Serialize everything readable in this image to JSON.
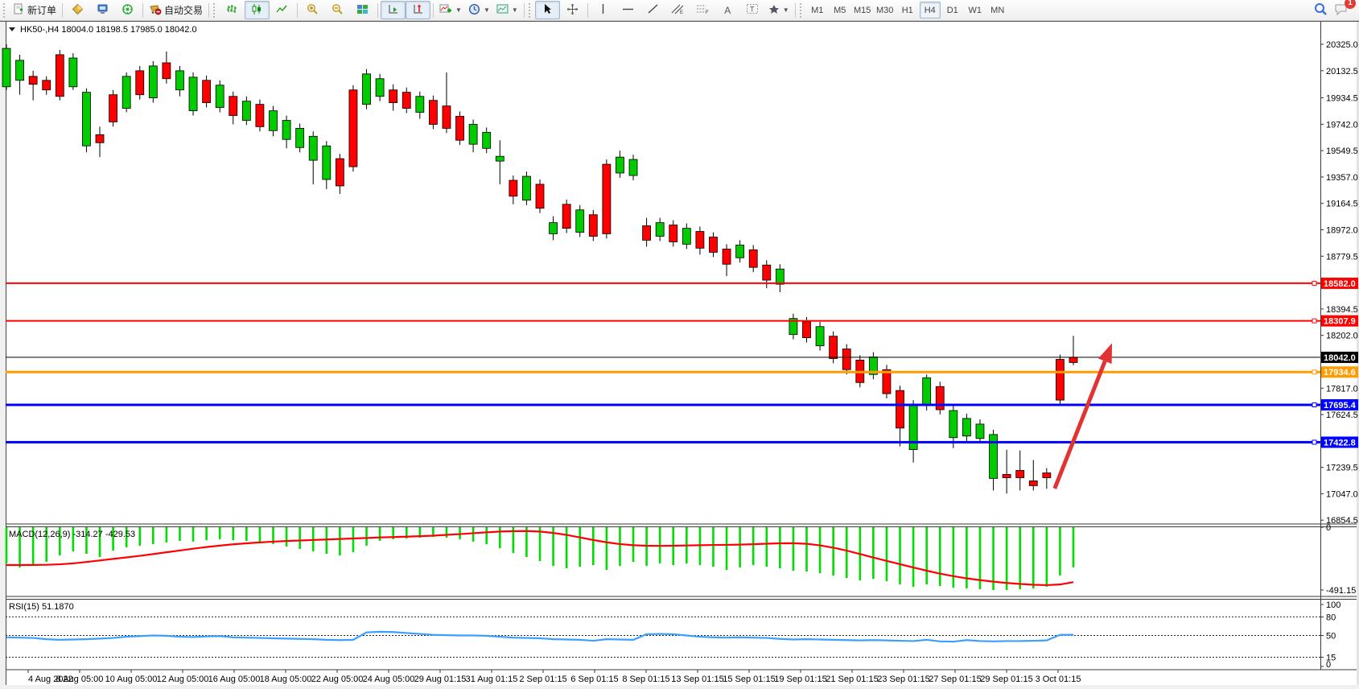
{
  "toolbar": {
    "new_order_label": "新订单",
    "autotrade_label": "自动交易",
    "timeframes": [
      "M1",
      "M5",
      "M15",
      "M30",
      "H1",
      "H4",
      "D1",
      "W1",
      "MN"
    ],
    "active_timeframe": "H4",
    "notification_count": "1",
    "icons": [
      "new-order-icon",
      "market-watch-icon",
      "data-window-icon",
      "navigator-icon",
      "autotrading-icon",
      "bar-chart-icon",
      "candlestick-chart-icon",
      "line-chart-icon",
      "zoom-in-icon",
      "zoom-out-icon",
      "tile-windows-icon",
      "auto-scroll-icon",
      "chart-shift-icon",
      "indicators-icon",
      "periods-icon",
      "templates-icon",
      "cursor-icon",
      "crosshair-icon",
      "vertical-line-icon",
      "horizontal-line-icon",
      "trendline-icon",
      "channel-icon",
      "fibonacci-icon",
      "text-icon",
      "text-label-icon",
      "arrows-icon",
      "search-icon",
      "notifications-icon"
    ]
  },
  "header": {
    "symbol_period": "HK50-,H4",
    "ohlc_text": "18004.0 18198.5 17985.0 18042.0",
    "open": "18004.0",
    "high": "18198.5",
    "low": "17985.0",
    "close": "18042.0"
  },
  "macd": {
    "label": "MACD(12,26,9) -314.27 -429.53",
    "axis_labels": [
      "0",
      "-491.15"
    ]
  },
  "rsi": {
    "label": "RSI(15) 51.1870",
    "axis_labels": [
      "100",
      "80",
      "50",
      "15",
      "0"
    ]
  },
  "colors": {
    "up": "#00cc00",
    "down": "#ff0000",
    "wick": "#000000",
    "macd_hist": "#00dd00",
    "macd_signal": "#ff0000",
    "rsi_line": "#3aa0ff",
    "level_red": "#ff0000",
    "level_orange": "#ff9c00",
    "level_blue": "#0000ff",
    "price_line": "#000000",
    "arrow": "#e23333"
  },
  "chart_data": [
    {
      "type": "candlestick",
      "title": "HK50-,H4",
      "symbol": "HK50-",
      "timeframe": "H4",
      "ylim": [
        16820,
        20400
      ],
      "y_ticks": [
        "20325.0",
        "20132.5",
        "19934.5",
        "19742.0",
        "19549.5",
        "19357.0",
        "19164.5",
        "18972.0",
        "18779.5",
        "18394.5",
        "18202.0",
        "17817.0",
        "17624.5",
        "17239.5",
        "17047.0",
        "16854.5"
      ],
      "x_labels": [
        "4 Aug 2022",
        "8 Aug 05:00",
        "10 Aug 05:00",
        "12 Aug 05:00",
        "16 Aug 05:00",
        "18 Aug 05:00",
        "22 Aug 05:00",
        "24 Aug 05:00",
        "29 Aug 01:15",
        "31 Aug 01:15",
        "2 Sep 01:15",
        "6 Sep 01:15",
        "8 Sep 01:15",
        "13 Sep 01:15",
        "15 Sep 01:15",
        "19 Sep 01:15",
        "21 Sep 01:15",
        "23 Sep 01:15",
        "27 Sep 01:15",
        "29 Sep 01:15",
        "3 Oct 01:15"
      ],
      "levels": [
        {
          "price": 18582.0,
          "label": "18582.0",
          "color": "#ff0000",
          "width": 2
        },
        {
          "price": 18307.9,
          "label": "18307.9",
          "color": "#ff0000",
          "width": 2
        },
        {
          "price": 18042.0,
          "label": "18042.0",
          "color": "#000000",
          "width": 1,
          "style": "current-price"
        },
        {
          "price": 17934.6,
          "label": "17934.6",
          "color": "#ff9c00",
          "width": 3
        },
        {
          "price": 17695.4,
          "label": "17695.4",
          "color": "#0000ff",
          "width": 3
        },
        {
          "price": 17422.8,
          "label": "17422.8",
          "color": "#0000ff",
          "width": 3
        }
      ],
      "arrow": {
        "from": {
          "bar": 78.6,
          "price": 17085
        },
        "to": {
          "bar": 82.9,
          "price": 18145
        }
      },
      "candles": [
        [
          20015,
          20324,
          19992,
          20295,
          "g"
        ],
        [
          20062,
          20249,
          19957,
          20208,
          "g"
        ],
        [
          20091,
          20132,
          19916,
          20033,
          "r"
        ],
        [
          20062,
          20091,
          19957,
          19992,
          "r"
        ],
        [
          20249,
          20284,
          19916,
          19945,
          "r"
        ],
        [
          20015,
          20260,
          19992,
          20225,
          "g"
        ],
        [
          19584,
          20004,
          19537,
          19975,
          "g"
        ],
        [
          19666,
          19724,
          19502,
          19607,
          "r"
        ],
        [
          19957,
          19992,
          19724,
          19759,
          "r"
        ],
        [
          19858,
          20120,
          19829,
          20091,
          "g"
        ],
        [
          20132,
          20167,
          19922,
          19957,
          "r"
        ],
        [
          19934,
          20202,
          19899,
          20167,
          "g"
        ],
        [
          20190,
          20272,
          20039,
          20074,
          "r"
        ],
        [
          19992,
          20167,
          19945,
          20132,
          "g"
        ],
        [
          19840,
          20120,
          19805,
          20085,
          "g"
        ],
        [
          20062,
          20097,
          19864,
          19899,
          "r"
        ],
        [
          19864,
          20062,
          19829,
          20027,
          "g"
        ],
        [
          19945,
          19980,
          19741,
          19805,
          "r"
        ],
        [
          19770,
          19945,
          19736,
          19910,
          "g"
        ],
        [
          19887,
          19922,
          19689,
          19724,
          "r"
        ],
        [
          19695,
          19875,
          19654,
          19840,
          "g"
        ],
        [
          19631,
          19805,
          19566,
          19770,
          "g"
        ],
        [
          19572,
          19747,
          19537,
          19712,
          "g"
        ],
        [
          19479,
          19689,
          19304,
          19654,
          "g"
        ],
        [
          19339,
          19619,
          19269,
          19584,
          "g"
        ],
        [
          19491,
          19526,
          19234,
          19292,
          "r"
        ],
        [
          19992,
          20027,
          19397,
          19432,
          "r"
        ],
        [
          19887,
          20144,
          19852,
          20109,
          "g"
        ],
        [
          19945,
          20109,
          19910,
          20074,
          "g"
        ],
        [
          19992,
          20033,
          19840,
          19899,
          "r"
        ],
        [
          19975,
          20010,
          19823,
          19858,
          "r"
        ],
        [
          19829,
          19980,
          19782,
          19945,
          "g"
        ],
        [
          19916,
          19951,
          19706,
          19741,
          "r"
        ],
        [
          19875,
          20120,
          19677,
          19712,
          "r"
        ],
        [
          19800,
          19835,
          19590,
          19625,
          "r"
        ],
        [
          19596,
          19776,
          19537,
          19741,
          "g"
        ],
        [
          19566,
          19718,
          19531,
          19683,
          "g"
        ],
        [
          19473,
          19625,
          19304,
          19508,
          "g"
        ],
        [
          19333,
          19368,
          19158,
          19217,
          "r"
        ],
        [
          19188,
          19397,
          19152,
          19362,
          "g"
        ],
        [
          19304,
          19339,
          19094,
          19129,
          "r"
        ],
        [
          18943,
          19071,
          18896,
          19024,
          "g"
        ],
        [
          19158,
          19193,
          18948,
          18983,
          "r"
        ],
        [
          18954,
          19152,
          18919,
          19117,
          "g"
        ],
        [
          19082,
          19117,
          18890,
          18925,
          "r"
        ],
        [
          19450,
          19485,
          18908,
          18943,
          "r"
        ],
        [
          19386,
          19549,
          19351,
          19502,
          "g"
        ],
        [
          19368,
          19520,
          19333,
          19485,
          "g"
        ],
        [
          19001,
          19059,
          18849,
          18896,
          "r"
        ],
        [
          18925,
          19059,
          18890,
          19024,
          "g"
        ],
        [
          19007,
          19042,
          18849,
          18884,
          "r"
        ],
        [
          18867,
          19018,
          18832,
          18983,
          "g"
        ],
        [
          18960,
          18995,
          18791,
          18838,
          "r"
        ],
        [
          18919,
          18954,
          18773,
          18808,
          "r"
        ],
        [
          18832,
          18867,
          18634,
          18721,
          "r"
        ],
        [
          18768,
          18896,
          18733,
          18861,
          "g"
        ],
        [
          18826,
          18861,
          18663,
          18698,
          "r"
        ],
        [
          18715,
          18750,
          18546,
          18605,
          "r"
        ],
        [
          18575,
          18721,
          18517,
          18686,
          "g"
        ],
        [
          18208,
          18360,
          18173,
          18325,
          "g"
        ],
        [
          18301,
          18336,
          18150,
          18185,
          "r"
        ],
        [
          18126,
          18301,
          18091,
          18266,
          "g"
        ],
        [
          18196,
          18231,
          17998,
          18033,
          "r"
        ],
        [
          18103,
          18138,
          17917,
          17952,
          "r"
        ],
        [
          18022,
          18057,
          17823,
          17858,
          "r"
        ],
        [
          17917,
          18080,
          17882,
          18045,
          "g"
        ],
        [
          17952,
          17987,
          17742,
          17777,
          "r"
        ],
        [
          17800,
          17835,
          17392,
          17526,
          "r"
        ],
        [
          17369,
          17730,
          17275,
          17701,
          "g"
        ],
        [
          17689,
          17916,
          17654,
          17893,
          "g"
        ],
        [
          17829,
          17864,
          17625,
          17660,
          "r"
        ],
        [
          17456,
          17689,
          17380,
          17654,
          "g"
        ],
        [
          17468,
          17631,
          17421,
          17596,
          "g"
        ],
        [
          17450,
          17590,
          17415,
          17555,
          "g"
        ],
        [
          17159,
          17514,
          17071,
          17479,
          "g"
        ],
        [
          17188,
          17368,
          17048,
          17164,
          "r"
        ],
        [
          17217,
          17363,
          17071,
          17164,
          "r"
        ],
        [
          17141,
          17293,
          17071,
          17106,
          "r"
        ],
        [
          17199,
          17234,
          17083,
          17164,
          "r"
        ],
        [
          18027,
          18062,
          17701,
          17730,
          "r"
        ],
        [
          18004,
          18198.5,
          17985,
          18042,
          "r"
        ]
      ]
    },
    {
      "type": "bar",
      "title": "MACD(12,26,9)",
      "last_values": {
        "macd": -314.27,
        "signal": -429.53
      },
      "ylim": [
        -530,
        0
      ],
      "axis_ticks": [
        0,
        -491.15
      ],
      "values": [
        -283,
        -315,
        -296,
        -271,
        -220,
        -189,
        -208,
        -233,
        -183,
        -157,
        -145,
        -132,
        -120,
        -107,
        -113,
        -101,
        -94,
        -101,
        -107,
        -120,
        -132,
        -151,
        -170,
        -189,
        -208,
        -220,
        -195,
        -145,
        -107,
        -94,
        -88,
        -82,
        -76,
        -82,
        -94,
        -113,
        -132,
        -164,
        -202,
        -233,
        -265,
        -302,
        -321,
        -309,
        -296,
        -334,
        -302,
        -271,
        -302,
        -283,
        -296,
        -283,
        -296,
        -309,
        -334,
        -315,
        -296,
        -309,
        -321,
        -340,
        -347,
        -359,
        -378,
        -397,
        -416,
        -403,
        -422,
        -447,
        -466,
        -447,
        -460,
        -473,
        -479,
        -485,
        -491,
        -491,
        -485,
        -479,
        -466,
        -378,
        -314.27
      ],
      "signal": [
        -296,
        -296,
        -295,
        -294,
        -290,
        -283,
        -272,
        -260,
        -248,
        -236,
        -224,
        -210,
        -196,
        -182,
        -168,
        -155,
        -144,
        -134,
        -126,
        -119,
        -113,
        -108,
        -104,
        -100,
        -96,
        -92,
        -88,
        -84,
        -80,
        -77,
        -74,
        -70,
        -66,
        -60,
        -54,
        -47,
        -40,
        -34,
        -31,
        -30,
        -34,
        -45,
        -60,
        -80,
        -100,
        -118,
        -132,
        -141,
        -145,
        -146,
        -145,
        -143,
        -141,
        -139,
        -138,
        -136,
        -133,
        -129,
        -126,
        -125,
        -130,
        -142,
        -160,
        -183,
        -210,
        -237,
        -263,
        -289,
        -315,
        -340,
        -363,
        -383,
        -400,
        -414,
        -426,
        -436,
        -444,
        -450,
        -453,
        -448,
        -429.53
      ]
    },
    {
      "type": "line",
      "title": "RSI(15)",
      "last_value": 51.187,
      "ylim": [
        0,
        100
      ],
      "guide_levels": [
        80,
        50,
        15
      ],
      "values": [
        47,
        46.5,
        46,
        44,
        43,
        43.5,
        44,
        45,
        46,
        48,
        49,
        50,
        49.5,
        48,
        47.5,
        48.5,
        49,
        47,
        46.5,
        46,
        45.5,
        45,
        44.5,
        44,
        43,
        42.5,
        43,
        55,
        56,
        55.5,
        54,
        52.5,
        51,
        50.5,
        50,
        50,
        49.5,
        48,
        46.5,
        46,
        45.5,
        44,
        43.5,
        43,
        41.5,
        44,
        43.5,
        43,
        52,
        52.5,
        52,
        50,
        48,
        47,
        46.5,
        47,
        46.5,
        46,
        44.5,
        43.5,
        44,
        43.5,
        43,
        42.5,
        42,
        42.5,
        42,
        41.5,
        41,
        43,
        40.5,
        40,
        42.5,
        41,
        40.5,
        41,
        41,
        41.5,
        42,
        51,
        51.187
      ]
    }
  ]
}
